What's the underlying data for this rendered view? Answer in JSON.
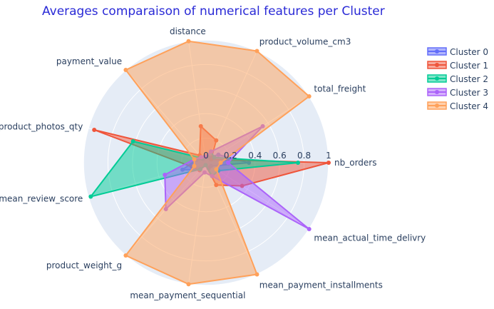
{
  "chart_data": {
    "type": "radar",
    "title": "Averages comparaison  of numerical features per Cluster",
    "axes": [
      "nb_orders",
      "total_freight",
      "product_volume_cm3",
      "distance",
      "payment_value",
      "product_photos_qty",
      "mean_review_score",
      "product_weight_g",
      "mean_payment_sequential",
      "mean_payment_installments",
      "mean_actual_time_delivry"
    ],
    "radial_range": [
      0,
      1
    ],
    "radial_ticks": [
      "0",
      "0.2",
      "0.4",
      "0.6",
      "0.8",
      "1"
    ],
    "legend_position": "top-right",
    "series": [
      {
        "name": "Cluster 0",
        "color": "#636efa",
        "values": [
          0.35,
          0.12,
          0.05,
          0.04,
          0.04,
          0.08,
          0.2,
          0.08,
          0.02,
          0.05,
          0.05
        ]
      },
      {
        "name": "Cluster 1",
        "color": "#ef553b",
        "values": [
          1.0,
          0.05,
          0.2,
          0.3,
          0.08,
          0.95,
          0.12,
          0.08,
          0.02,
          0.2,
          0.35
        ]
      },
      {
        "name": "Cluster 2",
        "color": "#00cc96",
        "values": [
          0.75,
          0.08,
          0.1,
          0.05,
          0.05,
          0.62,
          0.98,
          0.07,
          0.02,
          0.12,
          0.12
        ]
      },
      {
        "name": "Cluster 3",
        "color": "#ab63fa",
        "values": [
          0.18,
          0.55,
          0.1,
          0.05,
          0.06,
          0.1,
          0.35,
          0.5,
          0.08,
          0.12,
          1.0
        ]
      },
      {
        "name": "Cluster 4",
        "color": "#ffa15a",
        "values": [
          0.12,
          1.0,
          1.0,
          1.0,
          1.0,
          0.1,
          0.1,
          1.0,
          1.0,
          1.0,
          0.1
        ]
      }
    ],
    "grid": true
  }
}
